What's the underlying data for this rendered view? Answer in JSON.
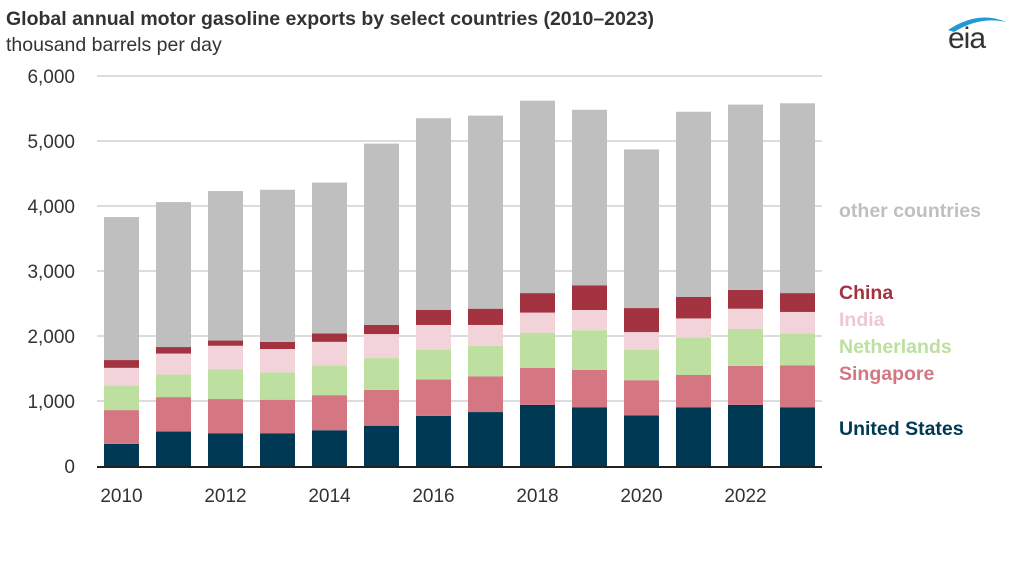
{
  "chart_data": {
    "type": "bar",
    "stacked": true,
    "title": "Global annual motor gasoline exports by select countries (2010–2023)",
    "subtitle": "thousand barrels per day",
    "xlabel": "",
    "ylabel": "thousand barrels per day",
    "ylim": [
      0,
      6000
    ],
    "yticks": [
      "0",
      "1,000",
      "2,000",
      "3,000",
      "4,000",
      "5,000",
      "6,000"
    ],
    "ytick_values": [
      0,
      1000,
      2000,
      3000,
      4000,
      5000,
      6000
    ],
    "xtick_labels": [
      "2010",
      "2012",
      "2014",
      "2016",
      "2018",
      "2020",
      "2022"
    ],
    "categories": [
      "2010",
      "2011",
      "2012",
      "2013",
      "2014",
      "2015",
      "2016",
      "2017",
      "2018",
      "2019",
      "2020",
      "2021",
      "2022",
      "2023"
    ],
    "grid": true,
    "legend_placement": "right",
    "series": [
      {
        "name": "United States",
        "color": "#003953",
        "values": [
          340,
          530,
          500,
          500,
          550,
          620,
          770,
          830,
          940,
          900,
          780,
          900,
          940,
          900
        ]
      },
      {
        "name": "Singapore",
        "color": "#d47782",
        "values": [
          520,
          530,
          530,
          520,
          540,
          550,
          560,
          550,
          570,
          580,
          540,
          500,
          600,
          650
        ]
      },
      {
        "name": "Netherlands",
        "color": "#bde0a0",
        "values": [
          380,
          350,
          460,
          420,
          460,
          490,
          460,
          470,
          540,
          610,
          470,
          580,
          570,
          490
        ]
      },
      {
        "name": "India",
        "color": "#f2d3d9",
        "values": [
          270,
          320,
          360,
          360,
          360,
          370,
          380,
          320,
          310,
          310,
          270,
          290,
          310,
          330
        ]
      },
      {
        "name": "China",
        "color": "#a33340",
        "values": [
          120,
          100,
          80,
          110,
          130,
          140,
          230,
          250,
          300,
          380,
          370,
          330,
          290,
          290
        ]
      },
      {
        "name": "other countries",
        "color": "#bfbfbf",
        "values": [
          2200,
          2230,
          2300,
          2340,
          2320,
          2790,
          2950,
          2970,
          2960,
          2700,
          2440,
          2850,
          2850,
          2920
        ]
      }
    ]
  },
  "logo": {
    "text": "eia"
  }
}
